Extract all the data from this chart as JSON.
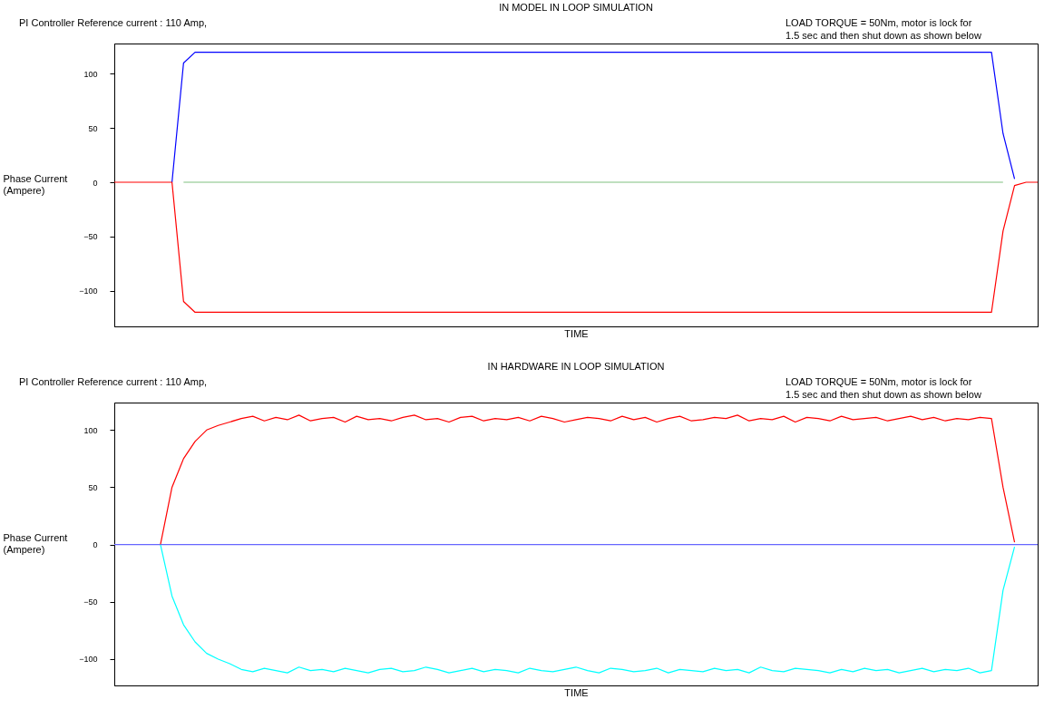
{
  "chart_data": [
    {
      "type": "line",
      "title": "IN MODEL IN LOOP SIMULATION",
      "xlabel": "TIME",
      "ylabel": "Phase Current\n(Ampere)",
      "annotations": [
        "PI Controller Reference current : 110 Amp,",
        "LOAD TORQUE = 50Nm, motor is lock for\n1.5 sec and then shut down as shown below"
      ],
      "tick_labels": "y",
      "ylim": [
        -133,
        128
      ],
      "yticks": [
        -100,
        -50,
        0,
        50,
        100
      ],
      "categories": [
        null,
        null,
        null,
        null,
        null,
        null,
        null,
        null,
        null,
        null,
        null,
        null,
        null,
        null,
        null,
        null,
        null,
        null,
        null,
        null,
        null,
        null,
        null,
        null,
        null,
        null,
        null,
        null,
        null,
        null,
        null,
        null,
        null,
        null,
        null,
        null,
        null,
        null,
        null,
        null,
        null,
        null,
        null,
        null,
        null,
        null,
        null,
        null,
        null,
        null,
        null,
        null,
        null,
        null,
        null,
        null,
        null,
        null,
        null,
        null,
        null,
        null,
        null,
        null,
        null,
        null,
        null,
        null,
        null,
        null,
        null,
        null,
        null,
        null,
        null,
        null,
        null,
        null,
        null,
        null,
        null
      ],
      "series": [
        {
          "color": "#80c080",
          "values": [
            null,
            null,
            null,
            null,
            null,
            null,
            0,
            0,
            0,
            0,
            0,
            0,
            0,
            0,
            0,
            0,
            0,
            0,
            0,
            0,
            0,
            0,
            0,
            0,
            0,
            0,
            0,
            0,
            0,
            0,
            0,
            0,
            0,
            0,
            0,
            0,
            0,
            0,
            0,
            0,
            0,
            0,
            0,
            0,
            0,
            0,
            0,
            0,
            0,
            0,
            0,
            0,
            0,
            0,
            0,
            0,
            0,
            0,
            0,
            0,
            0,
            0,
            0,
            0,
            0,
            0,
            0,
            0,
            0,
            0,
            0,
            0,
            0,
            0,
            0,
            0,
            0,
            0,
            null,
            null,
            null
          ]
        },
        {
          "color": "#0000ff",
          "values": [
            null,
            null,
            null,
            null,
            null,
            0,
            110,
            120,
            120,
            120,
            120,
            120,
            120,
            120,
            120,
            120,
            120,
            120,
            120,
            120,
            120,
            120,
            120,
            120,
            120,
            120,
            120,
            120,
            120,
            120,
            120,
            120,
            120,
            120,
            120,
            120,
            120,
            120,
            120,
            120,
            120,
            120,
            120,
            120,
            120,
            120,
            120,
            120,
            120,
            120,
            120,
            120,
            120,
            120,
            120,
            120,
            120,
            120,
            120,
            120,
            120,
            120,
            120,
            120,
            120,
            120,
            120,
            120,
            120,
            120,
            120,
            120,
            120,
            120,
            120,
            120,
            120,
            45,
            3,
            null,
            null
          ]
        },
        {
          "color": "#ff0000",
          "values": [
            0,
            0,
            0,
            0,
            0,
            0,
            -110,
            -120,
            -120,
            -120,
            -120,
            -120,
            -120,
            -120,
            -120,
            -120,
            -120,
            -120,
            -120,
            -120,
            -120,
            -120,
            -120,
            -120,
            -120,
            -120,
            -120,
            -120,
            -120,
            -120,
            -120,
            -120,
            -120,
            -120,
            -120,
            -120,
            -120,
            -120,
            -120,
            -120,
            -120,
            -120,
            -120,
            -120,
            -120,
            -120,
            -120,
            -120,
            -120,
            -120,
            -120,
            -120,
            -120,
            -120,
            -120,
            -120,
            -120,
            -120,
            -120,
            -120,
            -120,
            -120,
            -120,
            -120,
            -120,
            -120,
            -120,
            -120,
            -120,
            -120,
            -120,
            -120,
            -120,
            -120,
            -120,
            -120,
            -120,
            -45,
            -3,
            0,
            0
          ]
        }
      ]
    },
    {
      "type": "line",
      "title": "IN HARDWARE IN LOOP SIMULATION",
      "xlabel": "TIME",
      "ylabel": "Phase Current\n(Ampere)",
      "annotations": [
        "PI Controller Reference current : 110 Amp,",
        "LOAD TORQUE = 50Nm, motor is lock for\n1.5 sec and then shut down as shown below"
      ],
      "tick_labels": "y",
      "ylim": [
        -123,
        124
      ],
      "yticks": [
        -100,
        -50,
        0,
        50,
        100
      ],
      "categories": [
        null,
        null,
        null,
        null,
        null,
        null,
        null,
        null,
        null,
        null,
        null,
        null,
        null,
        null,
        null,
        null,
        null,
        null,
        null,
        null,
        null,
        null,
        null,
        null,
        null,
        null,
        null,
        null,
        null,
        null,
        null,
        null,
        null,
        null,
        null,
        null,
        null,
        null,
        null,
        null,
        null,
        null,
        null,
        null,
        null,
        null,
        null,
        null,
        null,
        null,
        null,
        null,
        null,
        null,
        null,
        null,
        null,
        null,
        null,
        null,
        null,
        null,
        null,
        null,
        null,
        null,
        null,
        null,
        null,
        null,
        null,
        null,
        null,
        null,
        null,
        null,
        null,
        null,
        null,
        null,
        null
      ],
      "series": [
        {
          "color": "#6666ff",
          "values": [
            0,
            0,
            0,
            0,
            0,
            0,
            0,
            0,
            0,
            0,
            0,
            0,
            0,
            0,
            0,
            0,
            0,
            0,
            0,
            0,
            0,
            0,
            0,
            0,
            0,
            0,
            0,
            0,
            0,
            0,
            0,
            0,
            0,
            0,
            0,
            0,
            0,
            0,
            0,
            0,
            0,
            0,
            0,
            0,
            0,
            0,
            0,
            0,
            0,
            0,
            0,
            0,
            0,
            0,
            0,
            0,
            0,
            0,
            0,
            0,
            0,
            0,
            0,
            0,
            0,
            0,
            0,
            0,
            0,
            0,
            0,
            0,
            0,
            0,
            0,
            0,
            0,
            0,
            0,
            0,
            0
          ]
        },
        {
          "color": "#ff0000",
          "values": [
            null,
            null,
            null,
            null,
            0,
            50,
            75,
            90,
            100,
            104,
            107,
            110,
            112,
            108,
            111,
            109,
            113,
            108,
            110,
            111,
            107,
            112,
            109,
            110,
            108,
            111,
            113,
            109,
            110,
            107,
            111,
            112,
            108,
            110,
            109,
            111,
            108,
            112,
            110,
            107,
            109,
            111,
            110,
            108,
            112,
            109,
            111,
            107,
            110,
            112,
            108,
            109,
            111,
            110,
            113,
            108,
            110,
            109,
            112,
            107,
            111,
            110,
            108,
            112,
            109,
            110,
            111,
            108,
            110,
            112,
            109,
            111,
            108,
            110,
            109,
            111,
            110,
            50,
            2,
            null,
            null
          ]
        },
        {
          "color": "#00ffff",
          "values": [
            null,
            null,
            null,
            null,
            0,
            -45,
            -70,
            -85,
            -95,
            -100,
            -104,
            -109,
            -111,
            -108,
            -110,
            -112,
            -107,
            -110,
            -109,
            -111,
            -108,
            -110,
            -112,
            -109,
            -108,
            -111,
            -110,
            -107,
            -109,
            -112,
            -110,
            -108,
            -111,
            -109,
            -110,
            -112,
            -108,
            -110,
            -111,
            -109,
            -107,
            -110,
            -112,
            -108,
            -109,
            -111,
            -110,
            -108,
            -112,
            -109,
            -110,
            -111,
            -108,
            -110,
            -109,
            -112,
            -107,
            -110,
            -111,
            -108,
            -109,
            -110,
            -112,
            -109,
            -111,
            -108,
            -110,
            -109,
            -112,
            -110,
            -108,
            -111,
            -109,
            -110,
            -108,
            -112,
            -110,
            -40,
            -2,
            null,
            null
          ]
        }
      ]
    }
  ]
}
